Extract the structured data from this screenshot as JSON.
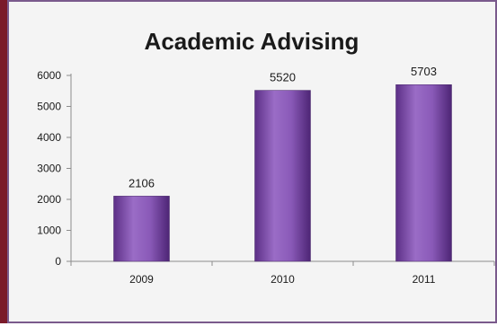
{
  "chart_data": {
    "type": "bar",
    "title": "Academic Advising",
    "categories": [
      "2009",
      "2010",
      "2011"
    ],
    "values": [
      2106,
      5520,
      5703
    ],
    "ylim": [
      0,
      6000
    ],
    "yticks": [
      "0",
      "1000",
      "2000",
      "3000",
      "4000",
      "5000",
      "6000"
    ],
    "grid": false,
    "legend": "none",
    "bar_color": "#7e4fa8"
  }
}
